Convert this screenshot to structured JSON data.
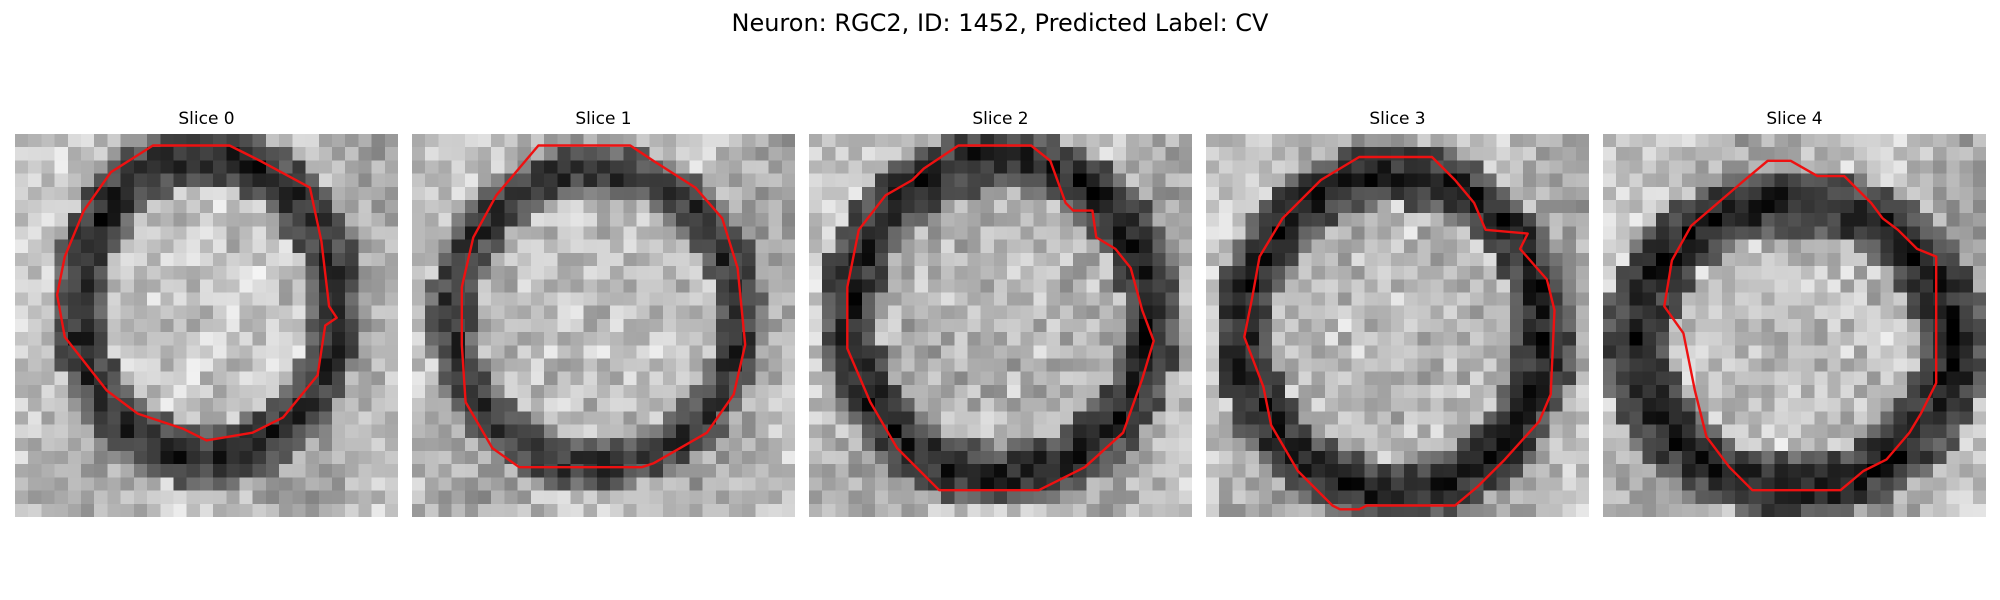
{
  "figure": {
    "title": "Neuron: RGC2, ID: 1452, Predicted Label: CV",
    "contour_color": "#ee1111"
  },
  "panels": [
    {
      "title": "Slice 0"
    },
    {
      "title": "Slice 1"
    },
    {
      "title": "Slice 2"
    },
    {
      "title": "Slice 3"
    },
    {
      "title": "Slice 4"
    }
  ]
}
